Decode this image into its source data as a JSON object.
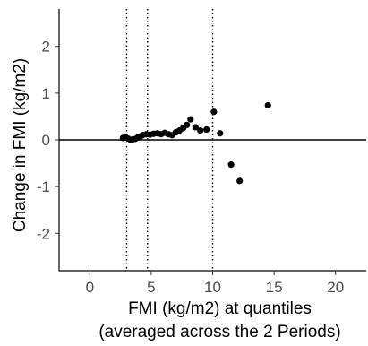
{
  "chart_data": {
    "type": "scatter",
    "title": "",
    "xlabel_lines": [
      "FMI (kg/m2) at quantiles",
      "(averaged across the 2 Periods)"
    ],
    "ylabel": "Change in FMI (kg/m2)",
    "xlim": [
      -2.5,
      22.5
    ],
    "ylim": [
      -2.8,
      2.8
    ],
    "x_ticks": [
      0,
      5,
      10,
      15,
      20
    ],
    "y_ticks": [
      -2,
      -1,
      0,
      1,
      2
    ],
    "x_tick_labels": [
      "0",
      "5",
      "10",
      "15",
      "20"
    ],
    "y_tick_labels": [
      "-2",
      "-1",
      "0",
      "1",
      "2"
    ],
    "reference_line_y": 0,
    "vertical_dotted_lines_x": [
      3.0,
      4.7,
      10.0
    ],
    "grid": false,
    "point_color": "#000000",
    "x": [
      2.7,
      2.9,
      3.1,
      3.3,
      3.5,
      3.7,
      3.9,
      4.1,
      4.3,
      4.6,
      4.9,
      5.2,
      5.5,
      5.8,
      6.1,
      6.4,
      6.7,
      7.0,
      7.3,
      7.6,
      7.9,
      8.2,
      8.6,
      9.0,
      9.5,
      10.1,
      10.6,
      11.5,
      12.2,
      14.5
    ],
    "y": [
      0.04,
      0.06,
      0.03,
      0.0,
      0.01,
      0.02,
      0.05,
      0.07,
      0.1,
      0.12,
      0.11,
      0.13,
      0.14,
      0.12,
      0.15,
      0.12,
      0.1,
      0.16,
      0.2,
      0.25,
      0.32,
      0.44,
      0.27,
      0.2,
      0.22,
      0.6,
      0.14,
      -0.53,
      -0.88,
      0.74
    ]
  }
}
